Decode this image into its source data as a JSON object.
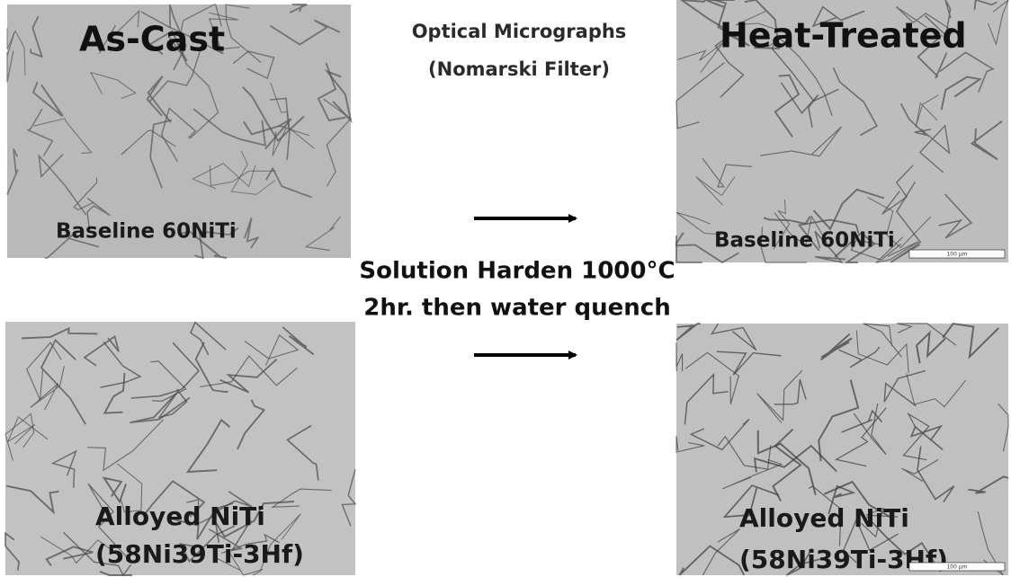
{
  "header": {
    "title": "Optical Micrographs",
    "subtitle": "(Nomarski Filter)"
  },
  "columns": {
    "left": "As-Cast",
    "right": "Heat-Treated"
  },
  "process": {
    "line1": "Solution Harden 1000°C",
    "line2": "2hr. then water quench"
  },
  "panels": [
    {
      "lines": [
        "Baseline 60NiTi"
      ]
    },
    {
      "lines": [
        "Baseline 60NiTi"
      ],
      "scale": "100 µm"
    },
    {
      "lines": [
        "Alloyed NiTi",
        "(58Ni39Ti-3Hf)"
      ]
    },
    {
      "lines": [
        "Alloyed NiTi",
        "(58Ni39Ti-3Hf)"
      ],
      "scale": "100 µm"
    }
  ]
}
